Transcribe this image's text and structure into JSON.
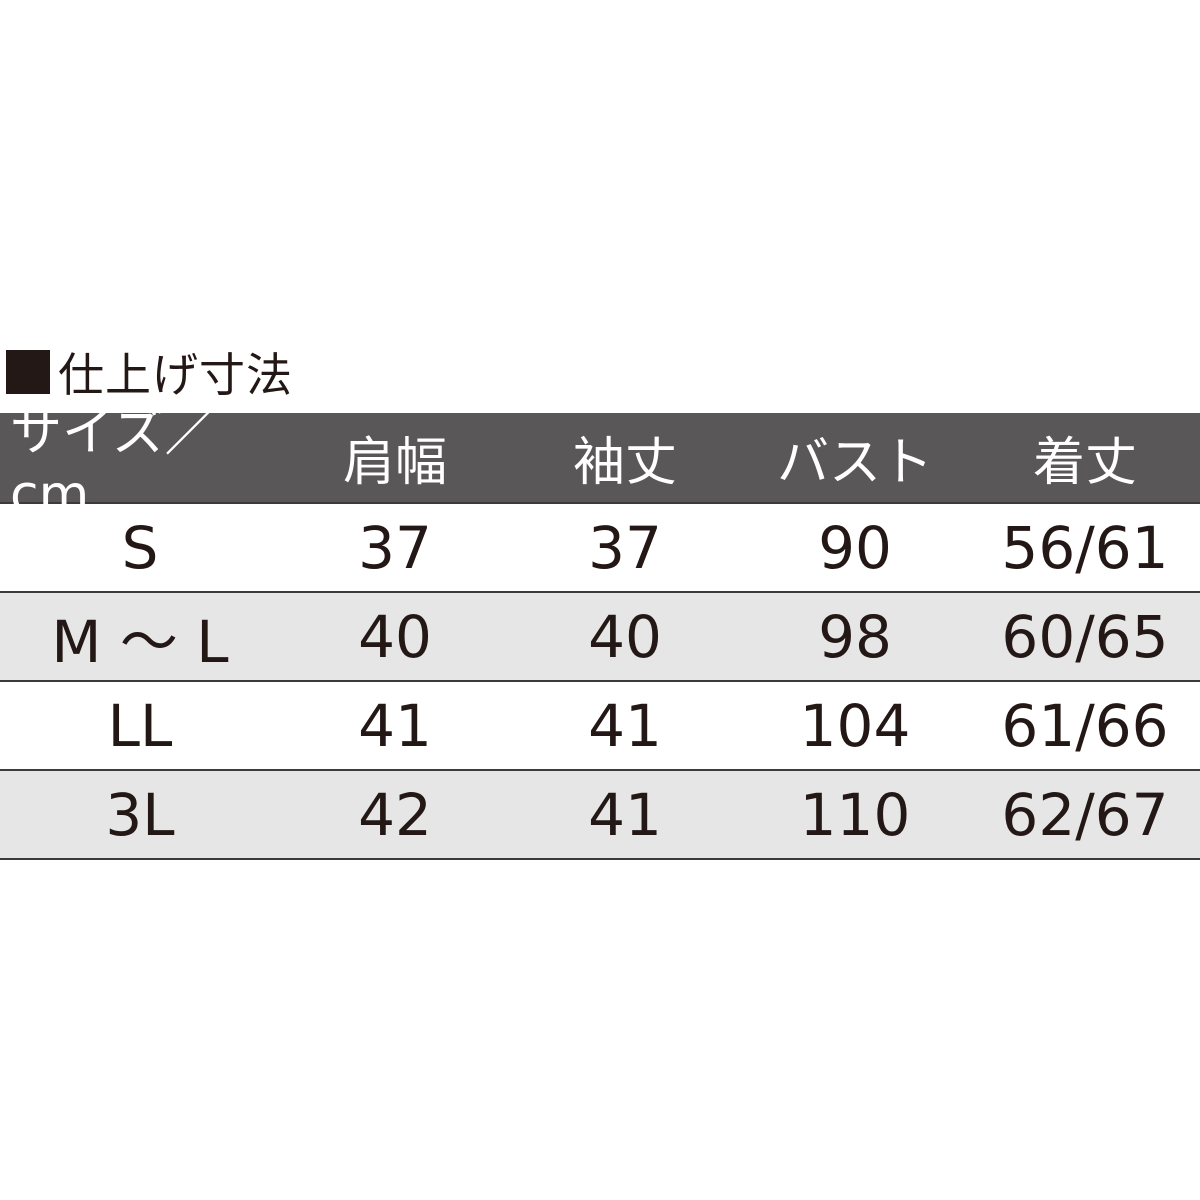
{
  "title": "仕上げ寸法",
  "icon": "black-square-icon",
  "colors": {
    "header_bg": "#595757",
    "alt_row_bg": "#e6e6e6",
    "text": "#231815"
  },
  "headers": [
    "サイズ／ cm",
    "肩幅",
    "袖丈",
    "バスト",
    "着丈"
  ],
  "rows": [
    [
      "S",
      "37",
      "37",
      "90",
      "56/61"
    ],
    [
      "M ～ L",
      "40",
      "40",
      "98",
      "60/65"
    ],
    [
      "LL",
      "41",
      "41",
      "104",
      "61/66"
    ],
    [
      "3L",
      "42",
      "41",
      "110",
      "62/67"
    ]
  ]
}
